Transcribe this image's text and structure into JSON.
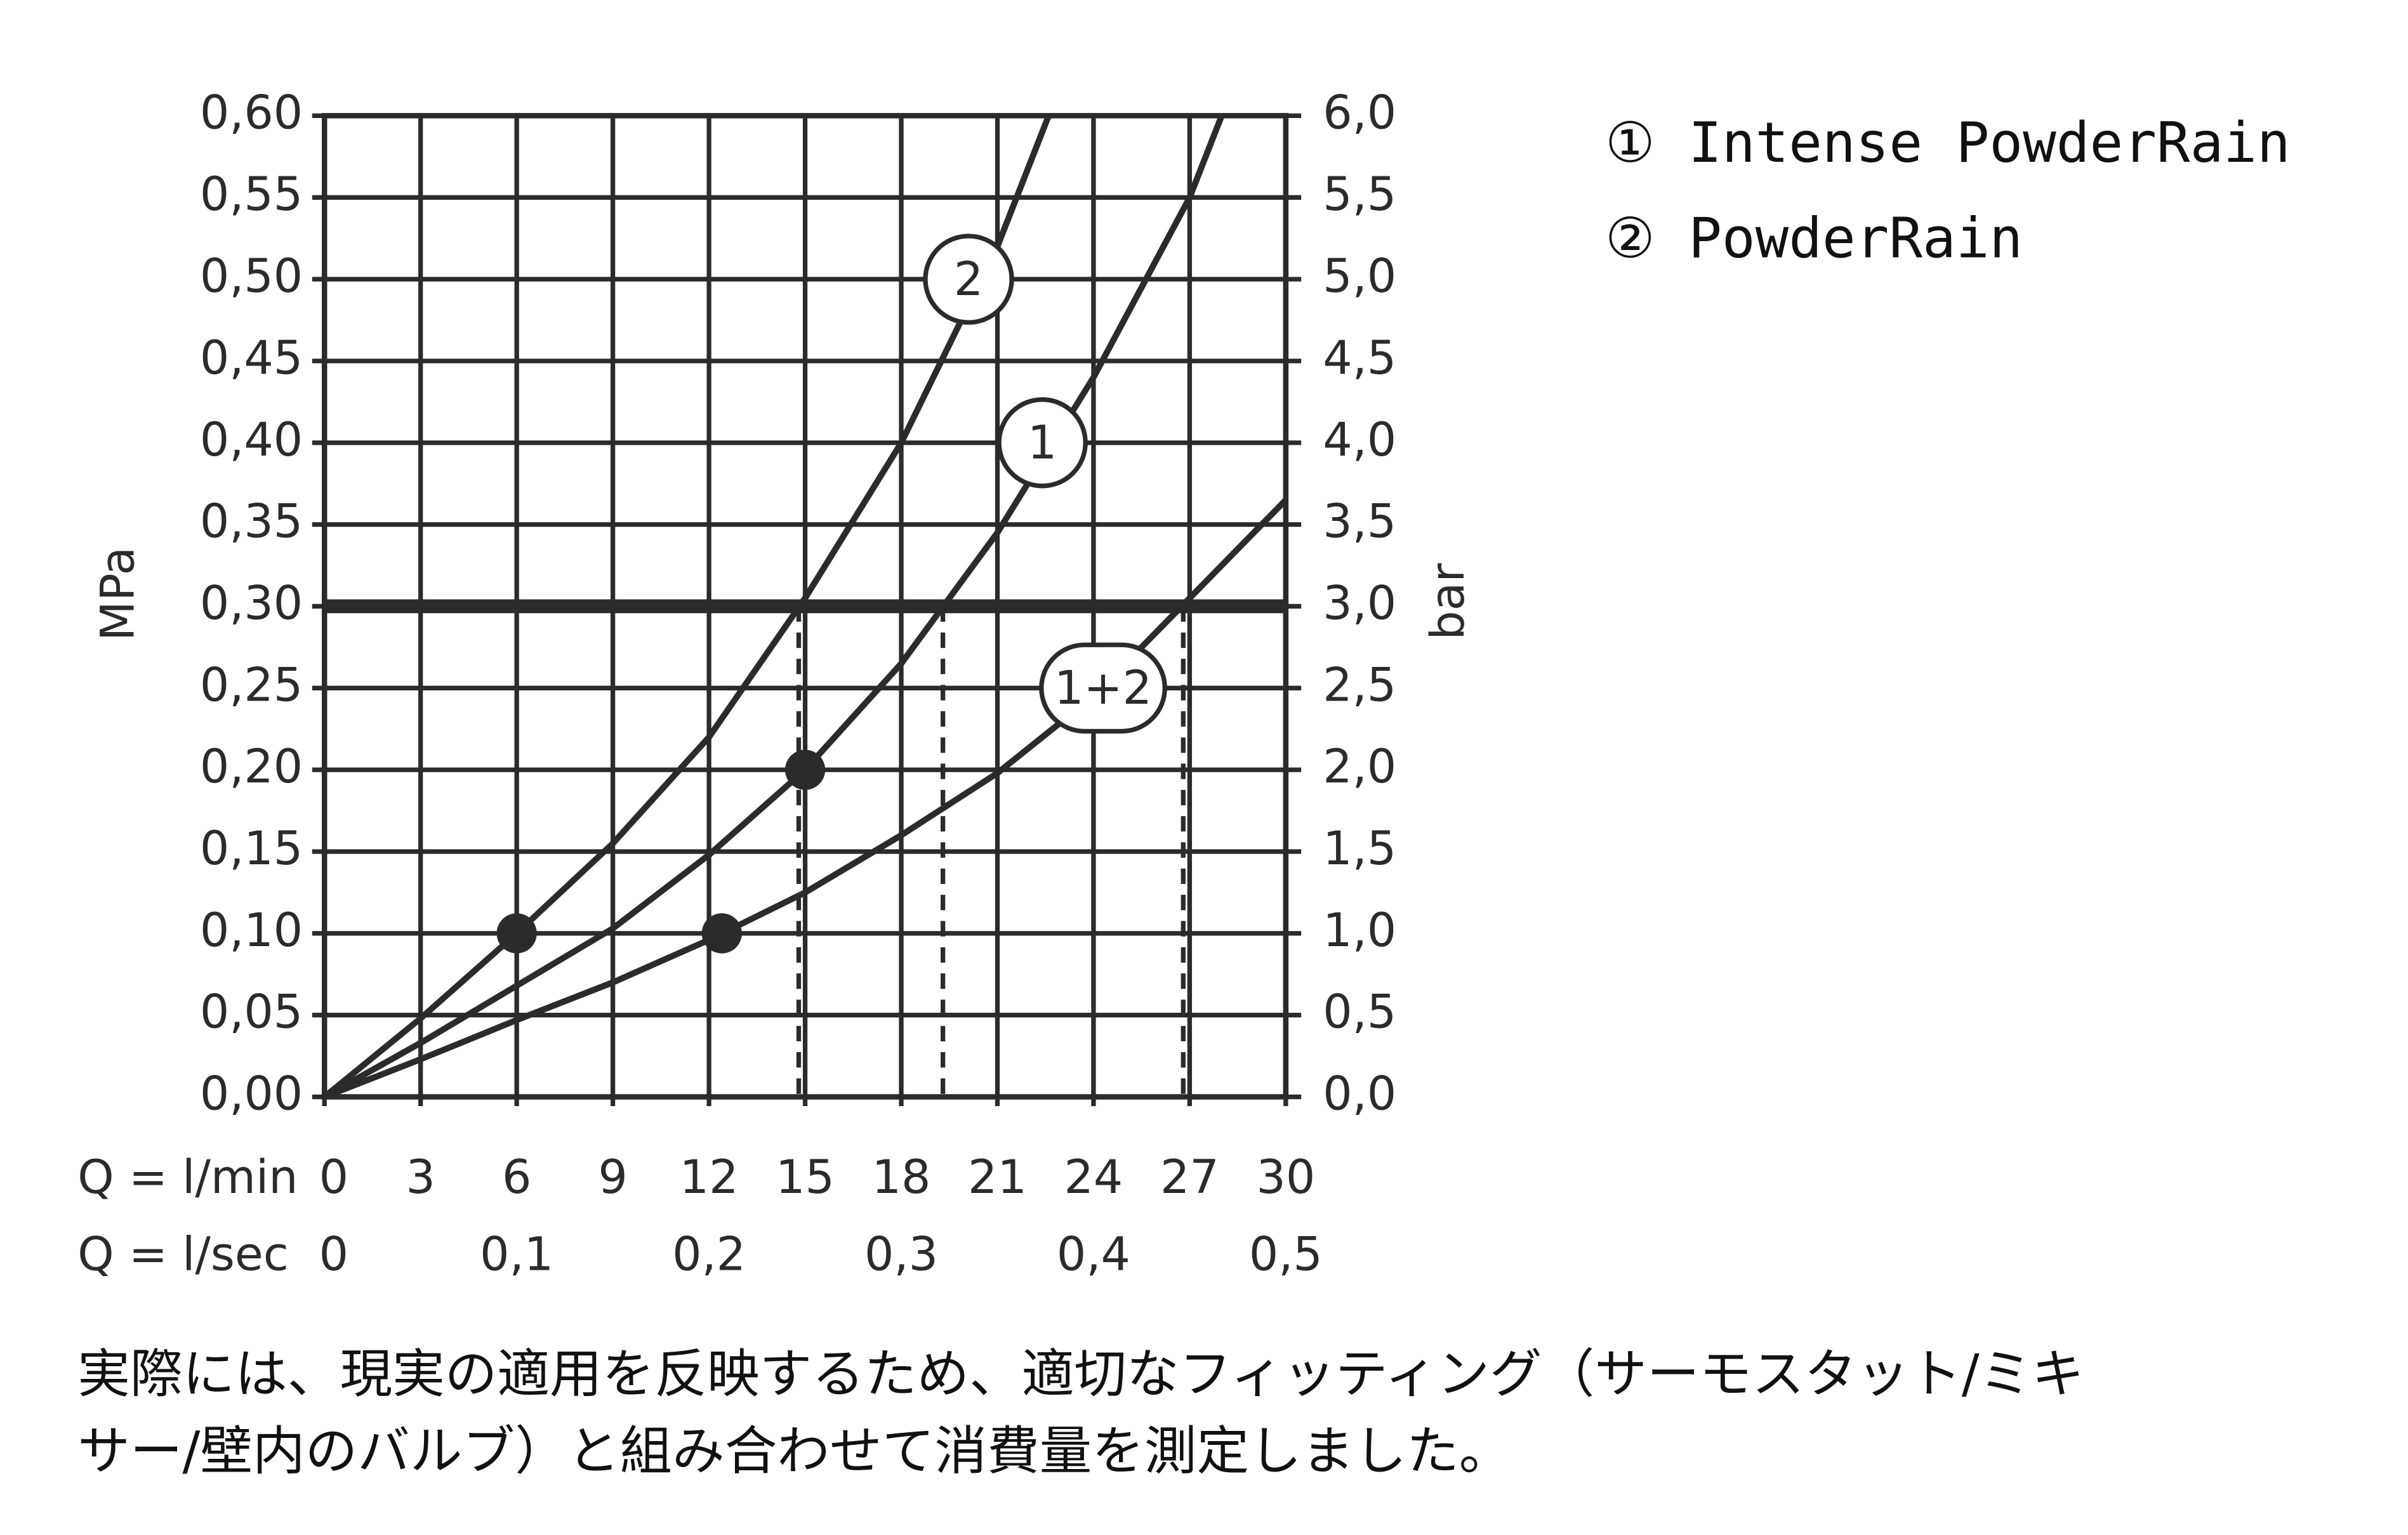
{
  "chart_data": {
    "type": "line",
    "y_label": "MPa",
    "y2_label": "bar",
    "x_label": "Q = l/min",
    "x2_label": "Q = l/sec",
    "xlim": [
      0,
      30
    ],
    "xticks": [
      0,
      3,
      6,
      9,
      12,
      15,
      18,
      21,
      24,
      27,
      30
    ],
    "x2lim": [
      0,
      0.5
    ],
    "x2ticks": [
      0,
      {
        "value": 0.1,
        "label": "0,1"
      },
      {
        "value": 0.2,
        "label": "0,2"
      },
      {
        "value": 0.3,
        "label": "0,3"
      },
      {
        "value": 0.4,
        "label": "0,4"
      },
      {
        "value": 0.5,
        "label": "0,5"
      }
    ],
    "ylim": [
      0,
      0.6
    ],
    "yticks": [
      {
        "value": 0,
        "label": "0,00"
      },
      {
        "value": 0.05,
        "label": "0,05"
      },
      {
        "value": 0.1,
        "label": "0,10"
      },
      {
        "value": 0.15,
        "label": "0,15"
      },
      {
        "value": 0.2,
        "label": "0,20"
      },
      {
        "value": 0.25,
        "label": "0,25"
      },
      {
        "value": 0.3,
        "label": "0,30"
      },
      {
        "value": 0.35,
        "label": "0,35"
      },
      {
        "value": 0.4,
        "label": "0,40"
      },
      {
        "value": 0.45,
        "label": "0,45"
      },
      {
        "value": 0.5,
        "label": "0,50"
      },
      {
        "value": 0.55,
        "label": "0,55"
      },
      {
        "value": 0.6,
        "label": "0,60"
      }
    ],
    "y2lim": [
      0,
      6
    ],
    "y2ticks": [
      {
        "value": 0,
        "label": "0,0"
      },
      {
        "value": 0.5,
        "label": "0,5"
      },
      {
        "value": 1,
        "label": "1,0"
      },
      {
        "value": 1.5,
        "label": "1,5"
      },
      {
        "value": 2,
        "label": "2,0"
      },
      {
        "value": 2.5,
        "label": "2,5"
      },
      {
        "value": 3,
        "label": "3,0"
      },
      {
        "value": 3.5,
        "label": "3,5"
      },
      {
        "value": 4,
        "label": "4,0"
      },
      {
        "value": 4.5,
        "label": "4,5"
      },
      {
        "value": 5,
        "label": "5,0"
      },
      {
        "value": 5.5,
        "label": "5,5"
      },
      {
        "value": 6,
        "label": "6,0"
      }
    ],
    "grid": true,
    "series": [
      {
        "name": "2",
        "color": "#2b2b2b",
        "x": [
          0,
          3,
          6,
          9,
          12,
          15,
          18,
          21,
          22.6
        ],
        "values": [
          0,
          0.048,
          0.1,
          0.155,
          0.22,
          0.305,
          0.4,
          0.52,
          0.6
        ]
      },
      {
        "name": "1",
        "color": "#2b2b2b",
        "x": [
          0,
          3,
          6,
          9,
          12,
          15,
          18,
          21,
          24,
          27,
          28
        ],
        "values": [
          0,
          0.033,
          0.068,
          0.103,
          0.148,
          0.2,
          0.265,
          0.345,
          0.44,
          0.55,
          0.6
        ]
      },
      {
        "name": "1+2",
        "color": "#2b2b2b",
        "x": [
          0,
          3,
          6,
          9,
          12,
          15,
          18,
          21,
          24,
          27,
          30
        ],
        "values": [
          0,
          0.023,
          0.047,
          0.07,
          0.096,
          0.125,
          0.16,
          0.198,
          0.245,
          0.305,
          0.365
        ]
      }
    ],
    "operating_points": [
      {
        "x": 6,
        "y": 0.1
      },
      {
        "x": 15,
        "y": 0.2
      },
      {
        "x": 12.4,
        "y": 0.1
      }
    ],
    "reference_line": 0.3,
    "drop_lines_x": [
      14.8,
      19.3,
      26.8
    ],
    "legend": [
      "① Intense PowderRain",
      "② PowderRain"
    ],
    "note_lines": [
      "実際には、現実の適用を反映するため、適切なフィッティング（サーモスタット/ミキ",
      "サー/壁内のバルブ）と組み合わせて消費量を測定しました。"
    ]
  }
}
